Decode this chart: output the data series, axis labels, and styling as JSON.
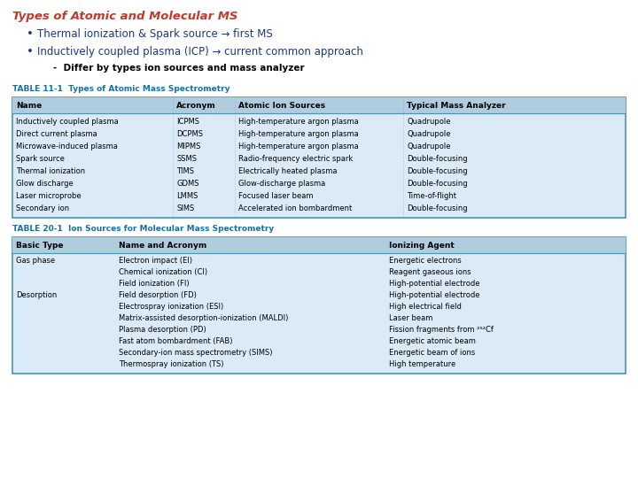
{
  "title": "Types of Atomic and Molecular MS",
  "title_color": "#C0392B",
  "bullet1": "Thermal ionization & Spark source → first MS",
  "bullet2": "Inductively coupled plasma (ICP) → current common approach",
  "sub_bullet": "Differ by types ion sources and mass analyzer",
  "bullet_color": "#1a3a7a",
  "sub_bullet_color": "#000000",
  "table1_label": "TABLE 11-1",
  "table1_title": "Types of Atomic Mass Spectrometry",
  "table1_label_color": "#1a6fa0",
  "table1_header": [
    "Name",
    "Acronym",
    "Atomic Ion Sources",
    "Typical Mass Analyzer"
  ],
  "table1_rows": [
    [
      "Inductively coupled plasma",
      "ICPMS",
      "High-temperature argon plasma",
      "Quadrupole"
    ],
    [
      "Direct current plasma",
      "DCPMS",
      "High-temperature argon plasma",
      "Quadrupole"
    ],
    [
      "Microwave-induced plasma",
      "MIPMS",
      "High-temperature argon plasma",
      "Quadrupole"
    ],
    [
      "Spark source",
      "SSMS",
      "Radio-frequency electric spark",
      "Double-focusing"
    ],
    [
      "Thermal ionization",
      "TIMS",
      "Electrically heated plasma",
      "Double-focusing"
    ],
    [
      "Glow discharge",
      "GDMS",
      "Glow-discharge plasma",
      "Double-focusing"
    ],
    [
      "Laser microprobe",
      "LMMS",
      "Focused laser beam",
      "Time-of-flight"
    ],
    [
      "Secondary ion",
      "SIMS",
      "Accelerated ion bombardment",
      "Double-focusing"
    ]
  ],
  "table2_label": "TABLE 20-1",
  "table2_title": "Ion Sources for Molecular Mass Spectrometry",
  "table2_label_color": "#1a6fa0",
  "table2_header": [
    "Basic Type",
    "Name and Acronym",
    "Ionizing Agent"
  ],
  "table2_rows": [
    [
      "Gas phase",
      "Electron impact (EI)",
      "Energetic electrons"
    ],
    [
      "",
      "Chemical ionization (CI)",
      "Reagent gaseous ions"
    ],
    [
      "",
      "Field ionization (FI)",
      "High-potential electrode"
    ],
    [
      "Desorption",
      "Field desorption (FD)",
      "High-potential electrode"
    ],
    [
      "",
      "Electrospray ionization (ESI)",
      "High electrical field"
    ],
    [
      "",
      "Matrix-assisted desorption-ionization (MALDI)",
      "Laser beam"
    ],
    [
      "",
      "Plasma desorption (PD)",
      "Fission fragments from ²⁵²Cf"
    ],
    [
      "",
      "Fast atom bombardment (FAB)",
      "Energetic atomic beam"
    ],
    [
      "",
      "Secondary-ion mass spectrometry (SIMS)",
      "Energetic beam of ions"
    ],
    [
      "",
      "Thermospray ionization (TS)",
      "High temperature"
    ]
  ],
  "table_bg": "#daeaf7",
  "table_header_bg": "#b0ccdf",
  "table_border_color": "#4a90b8",
  "bg_color": "#ffffff",
  "font_size_title": 9.5,
  "font_size_bullet": 8.5,
  "font_size_sub": 7.5,
  "font_size_table_label": 6.5,
  "font_size_table_header": 6.5,
  "font_size_table_row": 6.0
}
